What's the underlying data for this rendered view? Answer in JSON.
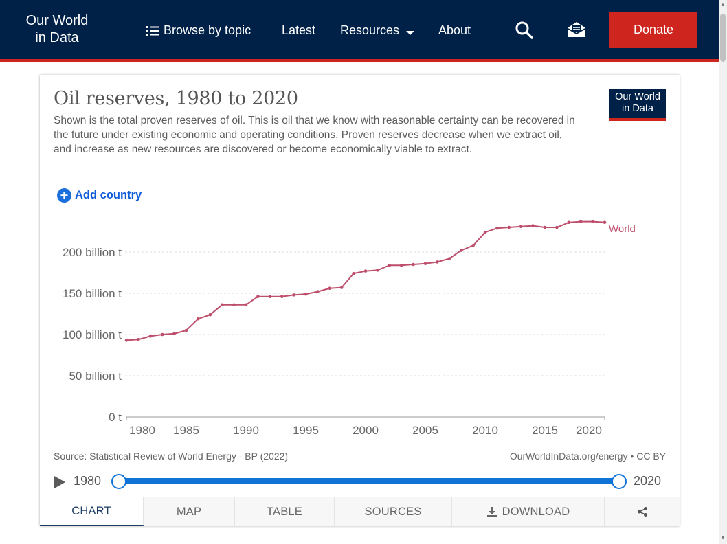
{
  "nav": {
    "logo_line1": "Our World",
    "logo_line2": "in Data",
    "browse": "Browse by topic",
    "latest": "Latest",
    "resources": "Resources",
    "about": "About",
    "donate": "Donate"
  },
  "card": {
    "title": "Oil reserves, 1980 to 2020",
    "subtitle": "Shown is the total proven reserves of oil. This is oil that we know with reasonable certainty can be recovered in the future under existing economic and operating conditions. Proven reserves decrease when we extract oil, and increase as new resources are discovered or become economically viable to extract.",
    "logo_line1": "Our World",
    "logo_line2": "in Data",
    "add_country": "Add country",
    "source": "Source: Statistical Review of World Energy - BP (2022)",
    "url": "OurWorldInData.org/energy • CC BY"
  },
  "timeline": {
    "start": "1980",
    "end": "2020"
  },
  "tabs": [
    "CHART",
    "MAP",
    "TABLE",
    "SOURCES",
    "DOWNLOAD"
  ],
  "colors": {
    "nav_bg": "#002147",
    "accent_red": "#ce261e",
    "series": "#be4f6c",
    "timeline": "#0f73d8"
  },
  "chart_data": {
    "type": "line",
    "title": "Oil reserves, 1980 to 2020",
    "ylim": [
      0,
      240
    ],
    "xlim": [
      1979,
      2021
    ],
    "grid": true,
    "y_ticks": [
      {
        "value": 0,
        "label": "0 t"
      },
      {
        "value": 50,
        "label": "50 billion t"
      },
      {
        "value": 100,
        "label": "100 billion t"
      },
      {
        "value": 150,
        "label": "150 billion t"
      },
      {
        "value": 200,
        "label": "200 billion t"
      }
    ],
    "x_ticks": [
      1980,
      1985,
      1990,
      1995,
      2000,
      2005,
      2010,
      2015,
      2020
    ],
    "series": [
      {
        "name": "World",
        "color": "#be4f6c",
        "x": [
          1980,
          1981,
          1982,
          1983,
          1984,
          1985,
          1986,
          1987,
          1988,
          1989,
          1990,
          1991,
          1992,
          1993,
          1994,
          1995,
          1996,
          1997,
          1998,
          1999,
          2000,
          2001,
          2002,
          2003,
          2004,
          2005,
          2006,
          2007,
          2008,
          2009,
          2010,
          2011,
          2012,
          2013,
          2014,
          2015,
          2016,
          2017,
          2018,
          2019,
          2020
        ],
        "y": [
          93,
          94,
          98,
          100,
          101,
          105,
          119,
          124,
          136,
          136,
          136,
          146,
          146,
          146,
          148,
          149,
          152,
          156,
          157,
          174,
          177,
          178,
          184,
          184,
          185,
          186,
          188,
          192,
          202,
          208,
          224,
          229,
          230,
          231,
          232,
          230,
          230,
          236,
          237,
          237,
          236
        ]
      }
    ]
  }
}
